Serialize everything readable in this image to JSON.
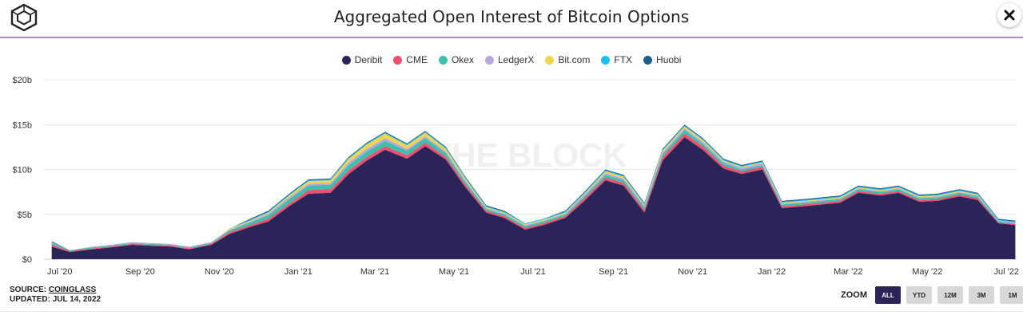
{
  "title": "Aggregated Open Interest of Bitcoin Options",
  "watermark": "THE BLOCK",
  "source_label": "SOURCE:",
  "source_name": "COINGLASS",
  "updated": "UPDATED: JUL 14, 2022",
  "zoom": {
    "label": "ZOOM",
    "buttons": [
      "ALL",
      "YTD",
      "12M",
      "3M",
      "1M"
    ],
    "active": "ALL"
  },
  "colors": {
    "Deribit": "#2a2458",
    "CME": "#ef4e6e",
    "Okex": "#3dbfac",
    "LedgerX": "#b7a9e0",
    "Bit.com": "#f1d54a",
    "FTX": "#19c0ee",
    "Huobi": "#1a5e8c"
  },
  "icons": {
    "logo": "the-block-cube-logo",
    "close": "close-icon"
  },
  "chart_data": {
    "type": "area",
    "stacked": true,
    "title": "Aggregated Open Interest of Bitcoin Options",
    "y_unit": "USD",
    "y_ticks": [
      "$0",
      "$5b",
      "$10b",
      "$15b",
      "$20b"
    ],
    "ylim": [
      0,
      20
    ],
    "x_ticks": [
      "Jul '20",
      "Sep '20",
      "Nov '20",
      "Jan '21",
      "Mar '21",
      "May '21",
      "Jul '21",
      "Sep '21",
      "Nov '21",
      "Jan '22",
      "Mar '22",
      "May '22",
      "Jul '22"
    ],
    "legend_position": "top-center",
    "grid": true,
    "x": [
      "2020-07-01",
      "2020-07-15",
      "2020-08-01",
      "2020-08-15",
      "2020-09-01",
      "2020-09-15",
      "2020-10-01",
      "2020-10-15",
      "2020-11-01",
      "2020-11-15",
      "2020-12-01",
      "2020-12-15",
      "2021-01-01",
      "2021-01-15",
      "2021-02-01",
      "2021-02-15",
      "2021-03-01",
      "2021-03-15",
      "2021-04-01",
      "2021-04-15",
      "2021-05-01",
      "2021-05-15",
      "2021-06-01",
      "2021-06-15",
      "2021-07-01",
      "2021-07-15",
      "2021-08-01",
      "2021-08-15",
      "2021-09-01",
      "2021-09-15",
      "2021-10-01",
      "2021-10-15",
      "2021-11-01",
      "2021-11-15",
      "2021-12-01",
      "2021-12-15",
      "2021-12-31",
      "2022-01-15",
      "2022-02-01",
      "2022-02-15",
      "2022-03-01",
      "2022-03-15",
      "2022-04-01",
      "2022-04-15",
      "2022-05-01",
      "2022-05-15",
      "2022-06-01",
      "2022-06-15",
      "2022-07-01",
      "2022-07-14"
    ],
    "series": [
      {
        "name": "Deribit",
        "values": [
          1.4,
          0.8,
          1.1,
          1.3,
          1.6,
          1.5,
          1.4,
          1.1,
          1.6,
          2.8,
          3.6,
          4.2,
          6.0,
          7.3,
          7.4,
          9.5,
          11.0,
          12.2,
          11.2,
          12.6,
          11.1,
          8.2,
          5.2,
          4.6,
          3.3,
          3.8,
          4.6,
          6.4,
          8.8,
          8.2,
          5.2,
          11.0,
          13.6,
          12.2,
          10.1,
          9.5,
          10.0,
          5.7,
          5.9,
          6.1,
          6.3,
          7.4,
          7.1,
          7.4,
          6.4,
          6.5,
          7.0,
          6.6,
          4.0,
          3.8
        ]
      },
      {
        "name": "CME",
        "values": [
          0.2,
          0.1,
          0.1,
          0.1,
          0.1,
          0.1,
          0.1,
          0.1,
          0.1,
          0.2,
          0.2,
          0.3,
          0.3,
          0.4,
          0.4,
          0.4,
          0.4,
          0.4,
          0.4,
          0.4,
          0.3,
          0.3,
          0.2,
          0.2,
          0.2,
          0.2,
          0.2,
          0.3,
          0.3,
          0.3,
          0.3,
          0.4,
          0.4,
          0.4,
          0.3,
          0.3,
          0.3,
          0.2,
          0.2,
          0.2,
          0.2,
          0.2,
          0.2,
          0.2,
          0.2,
          0.2,
          0.2,
          0.2,
          0.1,
          0.1
        ]
      },
      {
        "name": "Okex",
        "values": [
          0.2,
          0.1,
          0.1,
          0.1,
          0.1,
          0.1,
          0.1,
          0.1,
          0.1,
          0.2,
          0.3,
          0.4,
          0.5,
          0.5,
          0.5,
          0.6,
          0.6,
          0.6,
          0.5,
          0.5,
          0.4,
          0.3,
          0.2,
          0.2,
          0.2,
          0.2,
          0.2,
          0.2,
          0.3,
          0.3,
          0.3,
          0.3,
          0.4,
          0.3,
          0.3,
          0.2,
          0.2,
          0.2,
          0.2,
          0.2,
          0.2,
          0.2,
          0.2,
          0.2,
          0.2,
          0.2,
          0.2,
          0.2,
          0.1,
          0.1
        ]
      },
      {
        "name": "LedgerX",
        "values": [
          0.1,
          0.0,
          0.1,
          0.1,
          0.1,
          0.1,
          0.1,
          0.1,
          0.1,
          0.1,
          0.1,
          0.2,
          0.2,
          0.2,
          0.2,
          0.3,
          0.3,
          0.3,
          0.2,
          0.2,
          0.2,
          0.2,
          0.1,
          0.1,
          0.1,
          0.1,
          0.1,
          0.2,
          0.2,
          0.2,
          0.2,
          0.2,
          0.2,
          0.2,
          0.2,
          0.2,
          0.2,
          0.1,
          0.1,
          0.1,
          0.1,
          0.1,
          0.1,
          0.1,
          0.1,
          0.1,
          0.1,
          0.1,
          0.1,
          0.1
        ]
      },
      {
        "name": "Bit.com",
        "values": [
          0.0,
          0.0,
          0.0,
          0.0,
          0.0,
          0.0,
          0.0,
          0.0,
          0.0,
          0.1,
          0.1,
          0.1,
          0.2,
          0.3,
          0.3,
          0.4,
          0.5,
          0.5,
          0.4,
          0.4,
          0.3,
          0.2,
          0.1,
          0.1,
          0.1,
          0.1,
          0.1,
          0.1,
          0.2,
          0.2,
          0.1,
          0.2,
          0.2,
          0.2,
          0.1,
          0.1,
          0.1,
          0.1,
          0.1,
          0.1,
          0.1,
          0.1,
          0.1,
          0.1,
          0.1,
          0.1,
          0.1,
          0.1,
          0.0,
          0.0
        ]
      },
      {
        "name": "FTX",
        "values": [
          0.0,
          0.0,
          0.0,
          0.0,
          0.0,
          0.0,
          0.0,
          0.0,
          0.0,
          0.0,
          0.1,
          0.1,
          0.1,
          0.1,
          0.1,
          0.1,
          0.1,
          0.1,
          0.1,
          0.1,
          0.1,
          0.1,
          0.1,
          0.1,
          0.1,
          0.1,
          0.1,
          0.1,
          0.1,
          0.1,
          0.1,
          0.1,
          0.1,
          0.1,
          0.1,
          0.1,
          0.1,
          0.1,
          0.1,
          0.1,
          0.1,
          0.1,
          0.1,
          0.1,
          0.1,
          0.1,
          0.1,
          0.1,
          0.1,
          0.1
        ]
      },
      {
        "name": "Huobi",
        "values": [
          0.1,
          0.0,
          0.0,
          0.0,
          0.0,
          0.0,
          0.0,
          0.0,
          0.0,
          0.0,
          0.1,
          0.1,
          0.1,
          0.1,
          0.1,
          0.1,
          0.1,
          0.1,
          0.1,
          0.1,
          0.1,
          0.1,
          0.1,
          0.1,
          0.0,
          0.0,
          0.1,
          0.1,
          0.1,
          0.1,
          0.1,
          0.1,
          0.1,
          0.1,
          0.1,
          0.1,
          0.1,
          0.1,
          0.1,
          0.1,
          0.1,
          0.1,
          0.1,
          0.1,
          0.1,
          0.1,
          0.1,
          0.1,
          0.1,
          0.1
        ]
      }
    ]
  }
}
